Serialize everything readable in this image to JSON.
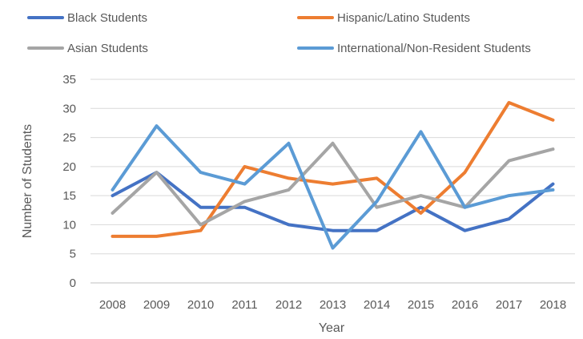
{
  "chart_data": {
    "type": "line",
    "title": "",
    "xlabel": "Year",
    "ylabel": "Number of Students",
    "x": [
      2008,
      2009,
      2010,
      2011,
      2012,
      2013,
      2014,
      2015,
      2016,
      2017,
      2018
    ],
    "ylim": [
      0,
      35
    ],
    "yticks": [
      0,
      5,
      10,
      15,
      20,
      25,
      30,
      35
    ],
    "grid": "horizontal",
    "legend_position": "top",
    "series": [
      {
        "name": "Black Students",
        "color": "#4472C4",
        "values": [
          15,
          19,
          13,
          13,
          10,
          9,
          9,
          13,
          9,
          11,
          17
        ]
      },
      {
        "name": "Hispanic/Latino Students",
        "color": "#ED7D31",
        "values": [
          8,
          8,
          9,
          20,
          18,
          17,
          18,
          12,
          19,
          31,
          28
        ]
      },
      {
        "name": "Asian Students",
        "color": "#A5A5A5",
        "values": [
          12,
          19,
          10,
          14,
          16,
          24,
          13,
          15,
          13,
          21,
          23
        ]
      },
      {
        "name": "International/Non-Resident Students",
        "color": "#5B9BD5",
        "values": [
          16,
          27,
          19,
          17,
          24,
          6,
          14,
          26,
          13,
          15,
          16
        ]
      }
    ]
  }
}
